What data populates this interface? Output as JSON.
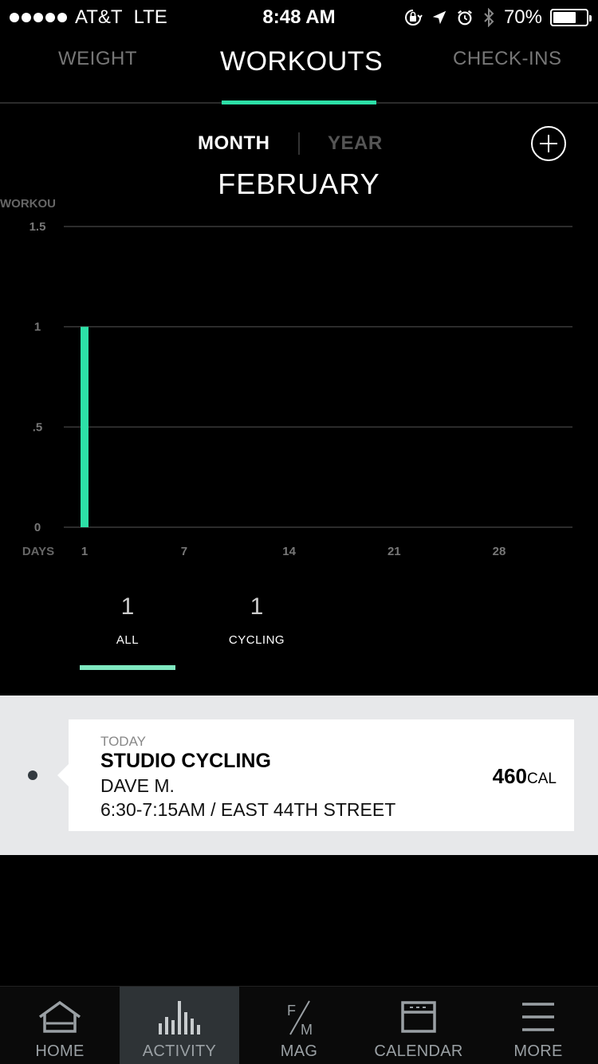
{
  "status_bar": {
    "carrier": "AT&T",
    "network": "LTE",
    "time": "8:48 AM",
    "battery_text": "70%",
    "battery_level": 0.7,
    "icons": [
      "lock-rotation-icon",
      "location-arrow-icon",
      "alarm-icon",
      "bluetooth-icon"
    ]
  },
  "top_tabs": [
    {
      "label": "WEIGHT"
    },
    {
      "label": "WORKOUTS",
      "active": true
    },
    {
      "label": "CHECK-INS"
    }
  ],
  "range_toggle": {
    "month": "MONTH",
    "year": "YEAR",
    "selected": "MONTH"
  },
  "month_title": "FEBRUARY",
  "chart_data": {
    "type": "bar",
    "ylabel": "WORKOU",
    "xlabel": "DAYS",
    "ylim": [
      0,
      1.5
    ],
    "y_ticks": [
      "1.5",
      "1",
      ".5",
      "0"
    ],
    "y_tick_values": [
      1.5,
      1,
      0.5,
      0
    ],
    "x_ticks": [
      "1",
      "7",
      "14",
      "21",
      "28"
    ],
    "x_tick_values": [
      1,
      7,
      14,
      21,
      28
    ],
    "xlim": [
      1,
      29
    ],
    "x": [
      1
    ],
    "values": [
      1
    ],
    "bar_color": "#2de0a7",
    "grid": true
  },
  "summary_tabs": [
    {
      "count": "1",
      "label": "ALL",
      "active": true
    },
    {
      "count": "1",
      "label": "CYCLING"
    }
  ],
  "feed": {
    "when": "TODAY",
    "class_name": "STUDIO CYCLING",
    "instructor": "DAVE M.",
    "time_location": "6:30-7:15AM / EAST 44TH STREET",
    "calories": "460",
    "calories_unit": "CAL"
  },
  "bottom_nav": [
    {
      "label": "HOME",
      "icon": "home-icon"
    },
    {
      "label": "ACTIVITY",
      "icon": "activity-bars-icon",
      "active": true
    },
    {
      "label": "MAG",
      "icon": "fm-mag-icon"
    },
    {
      "label": "CALENDAR",
      "icon": "calendar-icon"
    },
    {
      "label": "MORE",
      "icon": "menu-icon"
    }
  ],
  "colors": {
    "accent": "#2de0a7",
    "background": "#000000",
    "feed_background": "#e7e8ea"
  }
}
